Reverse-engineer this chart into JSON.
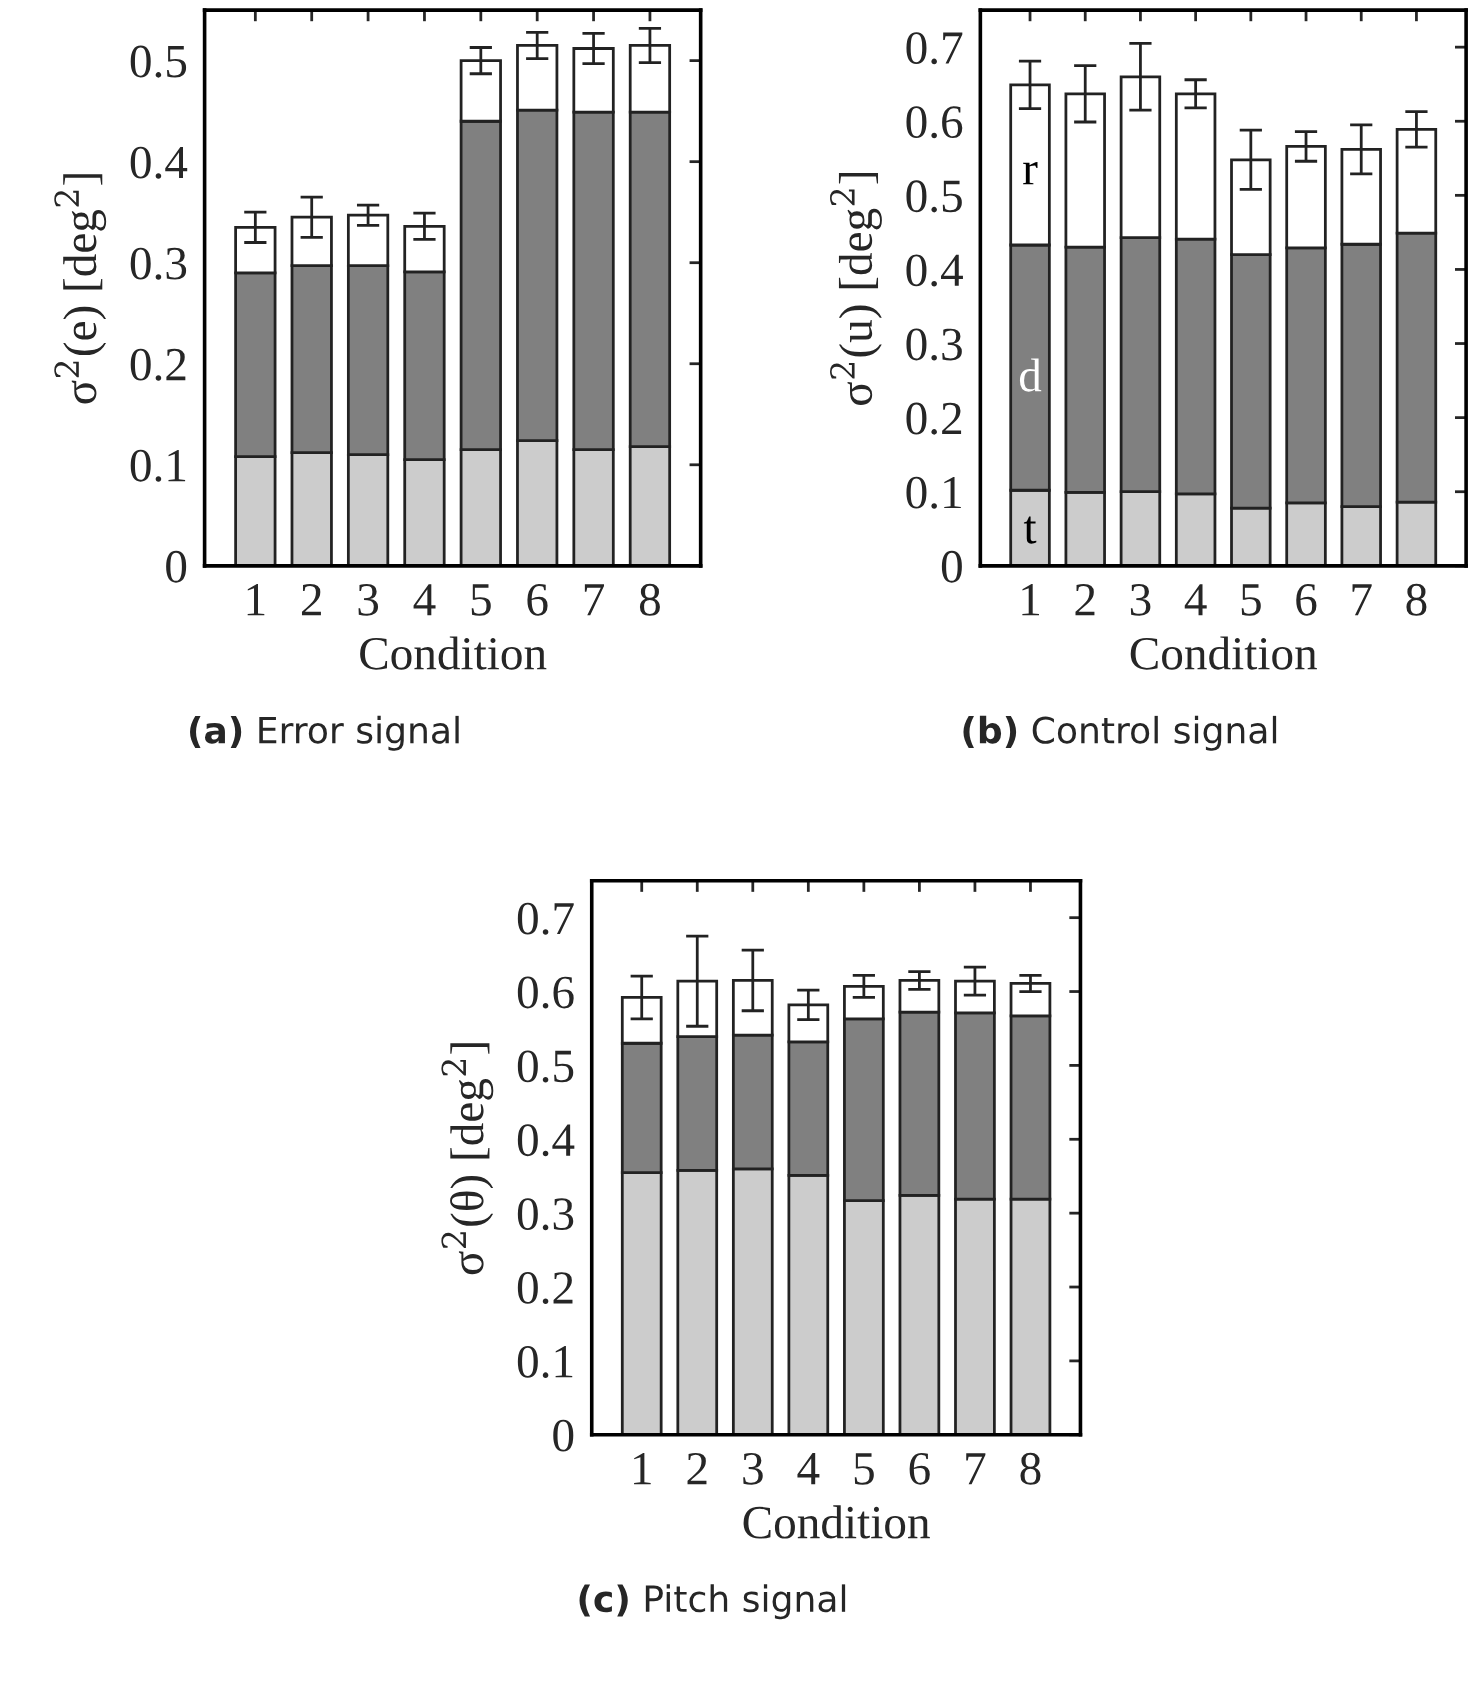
{
  "chart_data": [
    {
      "type": "bar",
      "stacked": true,
      "xlabel": "Condition",
      "ylabel": "σ$^{2}$(e) [deg$^{2}$]",
      "categories": [
        "1",
        "2",
        "3",
        "4",
        "5",
        "6",
        "7",
        "8"
      ],
      "ylim": [
        0,
        0.55
      ],
      "yticks": [
        0,
        0.1,
        0.2,
        0.3,
        0.4,
        0.5
      ],
      "grid": false,
      "legend": false,
      "annotations": [
        "(a) Error signal"
      ],
      "series": [
        {
          "color": "#cccccc",
          "values": [
            0.108,
            0.112,
            0.11,
            0.105,
            0.115,
            0.124,
            0.115,
            0.118
          ]
        },
        {
          "color": "#808080",
          "values": [
            0.182,
            0.185,
            0.187,
            0.186,
            0.325,
            0.327,
            0.334,
            0.331
          ]
        },
        {
          "color": "#ffffff",
          "values": [
            0.045,
            0.048,
            0.05,
            0.045,
            0.06,
            0.064,
            0.063,
            0.066
          ],
          "errors": [
            0.015,
            0.02,
            0.01,
            0.013,
            0.013,
            0.013,
            0.015,
            0.017
          ]
        }
      ]
    },
    {
      "type": "bar",
      "stacked": true,
      "xlabel": "Condition",
      "ylabel": "σ$^{2}$(u) [deg$^{2}$]",
      "categories": [
        "1",
        "2",
        "3",
        "4",
        "5",
        "6",
        "7",
        "8"
      ],
      "ylim": [
        0,
        0.75
      ],
      "yticks": [
        0,
        0.1,
        0.2,
        0.3,
        0.4,
        0.5,
        0.6,
        0.7
      ],
      "grid": false,
      "legend": false,
      "annotations": [
        "(b) Control signal"
      ],
      "series": [
        {
          "name": "t",
          "color": "#cccccc",
          "values": [
            0.102,
            0.099,
            0.1,
            0.097,
            0.078,
            0.085,
            0.08,
            0.086
          ]
        },
        {
          "name": "d",
          "color": "#808080",
          "values": [
            0.331,
            0.331,
            0.343,
            0.344,
            0.342,
            0.344,
            0.354,
            0.363
          ]
        },
        {
          "name": "r",
          "color": "#ffffff",
          "values": [
            0.216,
            0.207,
            0.217,
            0.196,
            0.128,
            0.137,
            0.128,
            0.14
          ],
          "errors": [
            0.032,
            0.038,
            0.045,
            0.019,
            0.04,
            0.02,
            0.033,
            0.024
          ]
        }
      ]
    },
    {
      "type": "bar",
      "stacked": true,
      "xlabel": "Condition",
      "ylabel": "σ$^{2}$(θ) [deg$^{2}$]",
      "categories": [
        "1",
        "2",
        "3",
        "4",
        "5",
        "6",
        "7",
        "8"
      ],
      "ylim": [
        0,
        0.75
      ],
      "yticks": [
        0,
        0.1,
        0.2,
        0.3,
        0.4,
        0.5,
        0.6,
        0.7
      ],
      "grid": false,
      "legend": false,
      "annotations": [
        "(c) Pitch signal"
      ],
      "series": [
        {
          "color": "#cccccc",
          "values": [
            0.355,
            0.358,
            0.36,
            0.351,
            0.317,
            0.324,
            0.319,
            0.319
          ]
        },
        {
          "color": "#808080",
          "values": [
            0.175,
            0.181,
            0.181,
            0.181,
            0.246,
            0.248,
            0.252,
            0.248
          ]
        },
        {
          "color": "#ffffff",
          "values": [
            0.062,
            0.075,
            0.074,
            0.05,
            0.044,
            0.043,
            0.043,
            0.044
          ],
          "errors": [
            0.029,
            0.061,
            0.041,
            0.02,
            0.015,
            0.012,
            0.019,
            0.011
          ]
        }
      ]
    }
  ]
}
